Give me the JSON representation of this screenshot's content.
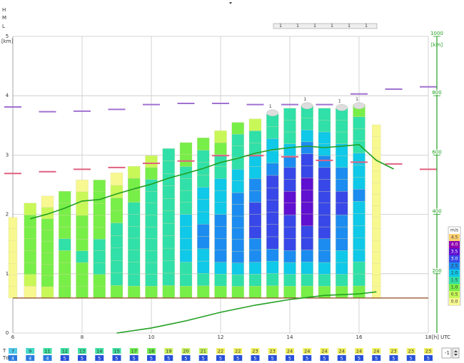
{
  "chart_data": {
    "type": "meteogram",
    "side_labels": [
      "H",
      "M",
      "L"
    ],
    "top_scale_labels": [
      "1",
      "1",
      "1",
      "1",
      "1",
      "1"
    ],
    "y_label": "[km]",
    "y2_label": "[km]",
    "x_label": "[h] UTC",
    "xlim": [
      6,
      18
    ],
    "xticks": [
      6,
      8,
      10,
      12,
      14,
      16,
      18
    ],
    "ylim": [
      0,
      5
    ],
    "yticks": [
      0,
      1,
      2,
      3,
      4,
      5
    ],
    "y2lim": [
      0,
      1000
    ],
    "y2ticks": [
      200,
      400,
      600,
      800,
      1000
    ],
    "grid": true,
    "columns": [
      {
        "x": 6.0,
        "bottom": 0.59,
        "top": 1.95,
        "speeds": [
          0,
          0,
          0,
          0,
          0,
          0,
          0
        ]
      },
      {
        "x": 6.5,
        "bottom": 0.59,
        "top": 2.19,
        "speeds": [
          0,
          0.5,
          1,
          1,
          1,
          1,
          1,
          0.5
        ]
      },
      {
        "x": 7.0,
        "bottom": 0.59,
        "top": 2.31,
        "speeds": [
          0.5,
          1,
          1,
          1,
          1,
          1,
          1,
          0.5,
          0
        ]
      },
      {
        "x": 7.5,
        "bottom": 0.59,
        "top": 2.39,
        "speeds": [
          1,
          1,
          1,
          1,
          1.5,
          1,
          1,
          1,
          1
        ]
      },
      {
        "x": 8.0,
        "bottom": 0.59,
        "top": 2.58,
        "speeds": [
          1,
          1,
          1,
          1.5,
          1,
          1,
          1,
          0.5,
          0.5,
          0
        ]
      },
      {
        "x": 8.5,
        "bottom": 0.59,
        "top": 2.58,
        "speeds": [
          1,
          1,
          1.5,
          1.5,
          1.5,
          1,
          1,
          1,
          1,
          1
        ]
      },
      {
        "x": 9.0,
        "bottom": 0.59,
        "top": 2.7,
        "speeds": [
          1,
          1.5,
          1.5,
          1.5,
          1.5,
          1.5,
          1,
          1,
          0.5,
          0
        ]
      },
      {
        "x": 9.5,
        "bottom": 0.59,
        "top": 2.81,
        "speeds": [
          1,
          1.5,
          1.5,
          1.5,
          1.5,
          1.5,
          1.5,
          1.5,
          1,
          1,
          0.5
        ]
      },
      {
        "x": 10.0,
        "bottom": 0.59,
        "top": 2.99,
        "speeds": [
          1,
          1.5,
          1.5,
          1.5,
          1.5,
          1.5,
          1.5,
          1.5,
          1.5,
          1.5,
          1,
          0.5
        ]
      },
      {
        "x": 10.5,
        "bottom": 0.59,
        "top": 3.11,
        "speeds": [
          1,
          1.5,
          1.5,
          1.5,
          1.5,
          1.5,
          1.5,
          1.5,
          1.5,
          1.5,
          1.5,
          1.5
        ]
      },
      {
        "x": 11.0,
        "bottom": 0.59,
        "top": 3.21,
        "speeds": [
          1,
          1.5,
          1.5,
          2,
          2,
          2,
          2,
          1.5,
          1.5,
          1.5,
          1.5,
          1,
          1
        ]
      },
      {
        "x": 11.5,
        "bottom": 0.59,
        "top": 3.29,
        "speeds": [
          1,
          1.5,
          2,
          2,
          2.5,
          2.5,
          2,
          2,
          2,
          1.5,
          1.5,
          1.5,
          1
        ]
      },
      {
        "x": 12.0,
        "bottom": 0.59,
        "top": 3.41,
        "speeds": [
          1,
          1.5,
          2,
          2.5,
          2.5,
          2.5,
          2.5,
          2,
          2,
          2,
          1.5,
          1.5,
          1,
          0.5
        ]
      },
      {
        "x": 12.5,
        "bottom": 0.59,
        "top": 3.55,
        "speeds": [
          1,
          1.5,
          2,
          2.5,
          2.5,
          2.5,
          2.5,
          2.5,
          2.5,
          2,
          2,
          1.5,
          1.5,
          1.5,
          1
        ]
      },
      {
        "x": 13.0,
        "bottom": 0.59,
        "top": 3.61,
        "speeds": [
          1,
          1.5,
          2,
          2.5,
          2.5,
          3,
          3,
          3,
          2.5,
          2.5,
          2,
          2,
          1.5,
          1.5,
          0.5
        ]
      },
      {
        "x": 13.5,
        "bottom": 0.59,
        "top": 3.69,
        "speeds": [
          1,
          1.5,
          2,
          2.5,
          3,
          3,
          3,
          3,
          3,
          3,
          2.5,
          2,
          2,
          1.5,
          1.5
        ]
      },
      {
        "x": 14.0,
        "bottom": 0.59,
        "top": 3.79,
        "speeds": [
          1,
          1.5,
          2,
          2.5,
          3,
          3,
          3,
          3.5,
          3.5,
          3,
          3,
          2.5,
          2,
          1.5,
          1.5,
          1.5
        ]
      },
      {
        "x": 14.5,
        "bottom": 0.59,
        "top": 3.83,
        "speeds": [
          1,
          1.5,
          2,
          2.5,
          3,
          3,
          3.5,
          3.5,
          3.5,
          3.5,
          3,
          3,
          2.5,
          2,
          1.5,
          1.5
        ]
      },
      {
        "x": 15.0,
        "bottom": 0.59,
        "top": 3.79,
        "speeds": [
          1,
          1.5,
          2,
          2.5,
          2.5,
          3,
          3,
          3,
          3,
          3,
          3,
          2.5,
          2,
          2,
          1.5,
          1.5
        ]
      },
      {
        "x": 15.5,
        "bottom": 0.59,
        "top": 3.79,
        "speeds": [
          1,
          1.5,
          2,
          2,
          2.5,
          2.5,
          2.5,
          3,
          3,
          2.5,
          2.5,
          2,
          2,
          1.5,
          1.5,
          1.5
        ]
      },
      {
        "x": 16.0,
        "bottom": 0.59,
        "top": 3.85,
        "speeds": [
          1,
          1.5,
          1.5,
          2,
          2,
          2,
          2,
          2,
          2.5,
          2,
          2,
          2,
          1.5,
          1.5,
          1.5,
          1
        ]
      },
      {
        "x": 16.5,
        "bottom": 0.59,
        "top": 3.51,
        "speeds": [
          0,
          0.5,
          0.5,
          1,
          1,
          1,
          1,
          1,
          1,
          1,
          1,
          1,
          1,
          1,
          0.5
        ]
      }
    ],
    "lines": [
      {
        "axis": "y2",
        "color": "#22a022",
        "x": [
          6.5,
          7,
          7.5,
          8,
          8.5,
          9,
          9.5,
          10,
          10.5,
          11,
          11.5,
          12,
          12.5,
          13,
          13.5,
          14,
          14.5,
          15,
          15.5,
          16,
          16.5,
          17
        ],
        "values": [
          385,
          401,
          421,
          445,
          450,
          469,
          486,
          502,
          522,
          538,
          555,
          575,
          589,
          606,
          618,
          625,
          630,
          625,
          630,
          635,
          582,
          553
        ]
      },
      {
        "axis": "y2",
        "color": "#22a022",
        "x": [
          9,
          10,
          11,
          12,
          13,
          14,
          15,
          16,
          16.5
        ],
        "values": [
          0,
          17,
          41,
          70,
          94,
          113,
          127,
          132,
          139
        ]
      }
    ],
    "markers": [
      {
        "color": "#a070d0",
        "x": [
          6,
          7,
          8,
          9,
          10,
          11,
          12,
          13,
          14,
          15,
          16,
          17,
          18
        ],
        "values": [
          3.81,
          3.73,
          3.74,
          3.77,
          3.85,
          3.87,
          3.87,
          3.85,
          3.85,
          3.85,
          4.03,
          4.11,
          4.15
        ]
      },
      {
        "color": "#e06080",
        "x": [
          6,
          7,
          8,
          9,
          10,
          11,
          12,
          13,
          14,
          15,
          16,
          17,
          18
        ],
        "values": [
          2.69,
          2.72,
          2.76,
          2.79,
          2.86,
          2.9,
          2.99,
          2.99,
          2.97,
          2.91,
          2.88,
          2.85,
          2.76
        ]
      }
    ],
    "clouds": [
      {
        "x": 13.5,
        "height": 3.71,
        "label": "1"
      },
      {
        "x": 14.5,
        "height": 3.83,
        "label": "1"
      },
      {
        "x": 15.5,
        "height": 3.8,
        "label": "1"
      },
      {
        "x": 16.0,
        "height": 3.83,
        "label": "1"
      }
    ],
    "legend": {
      "title": "m/s",
      "items": [
        {
          "value": 4.5,
          "label": "4.5",
          "color": "#ffd070"
        },
        {
          "value": 4,
          "label": "4.0",
          "color": "#9000b0"
        },
        {
          "value": 3.5,
          "label": "3.5",
          "color": "#6010d0"
        },
        {
          "value": 3,
          "label": "3.0",
          "color": "#3848e8"
        },
        {
          "value": 2.5,
          "label": "2.5",
          "color": "#1c8cf0"
        },
        {
          "value": 2,
          "label": "2.0",
          "color": "#10c8e8"
        },
        {
          "value": 1.5,
          "label": "1.5",
          "color": "#30e0a8"
        },
        {
          "value": 1,
          "label": "1.0",
          "color": "#78ee48"
        },
        {
          "value": 0.5,
          "label": "0.5",
          "color": "#c8f858"
        },
        {
          "value": 0,
          "label": "0.0",
          "color": "#f8f890"
        }
      ]
    },
    "rows": {
      "t_label": "T",
      "td_label": "Td",
      "x": [
        6,
        6.5,
        7,
        7.5,
        8,
        8.5,
        9,
        9.5,
        10,
        10.5,
        11,
        11.5,
        12,
        12.5,
        13,
        13.5,
        14,
        14.5,
        15,
        15.5,
        16,
        16.5,
        17,
        17.5,
        18
      ],
      "t": [
        7,
        9,
        11,
        12,
        13,
        14,
        15,
        17,
        18,
        19,
        20,
        21,
        22,
        22,
        23,
        23,
        24,
        24,
        24,
        24,
        24,
        24,
        23,
        23,
        23
      ],
      "td": [
        4,
        4,
        4,
        5,
        5,
        5,
        5,
        5,
        5,
        5,
        5,
        5,
        5,
        5,
        5,
        5,
        5,
        5,
        5,
        5,
        5,
        5,
        5,
        5,
        5
      ]
    },
    "spinner_value": "-1"
  }
}
